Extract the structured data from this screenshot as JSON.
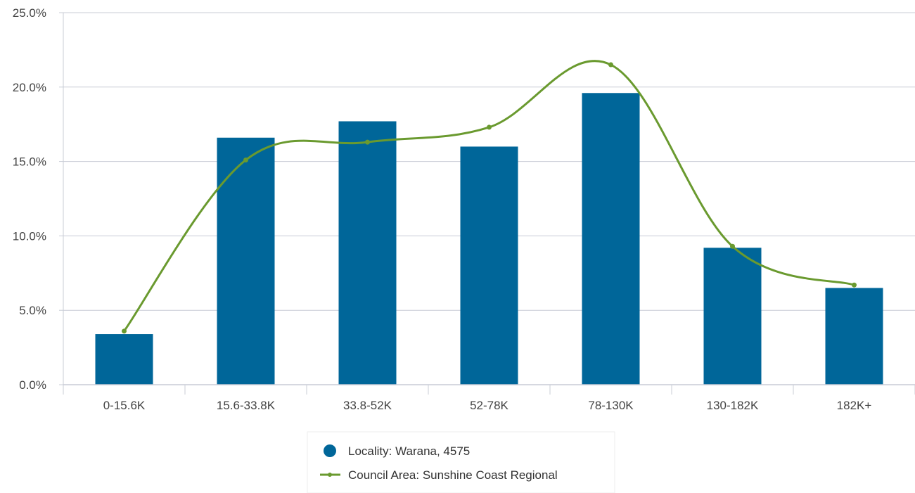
{
  "chart_data": {
    "type": "bar",
    "categories": [
      "0-15.6K",
      "15.6-33.8K",
      "33.8-52K",
      "52-78K",
      "78-130K",
      "130-182K",
      "182K+"
    ],
    "series": [
      {
        "name": "Locality: Warana, 4575",
        "kind": "bar",
        "color": "#006699",
        "values": [
          3.4,
          16.6,
          17.7,
          16.0,
          19.6,
          9.2,
          6.5
        ]
      },
      {
        "name": "Council Area: Sunshine Coast Regional",
        "kind": "line",
        "color": "#6a9a2f",
        "values": [
          3.6,
          15.1,
          16.3,
          17.3,
          21.5,
          9.3,
          6.7
        ]
      }
    ],
    "y_ticks": [
      "0.0%",
      "5.0%",
      "10.0%",
      "15.0%",
      "20.0%",
      "25.0%"
    ],
    "ylim": [
      0,
      25
    ],
    "grid": true,
    "legend_position": "bottom-center"
  }
}
